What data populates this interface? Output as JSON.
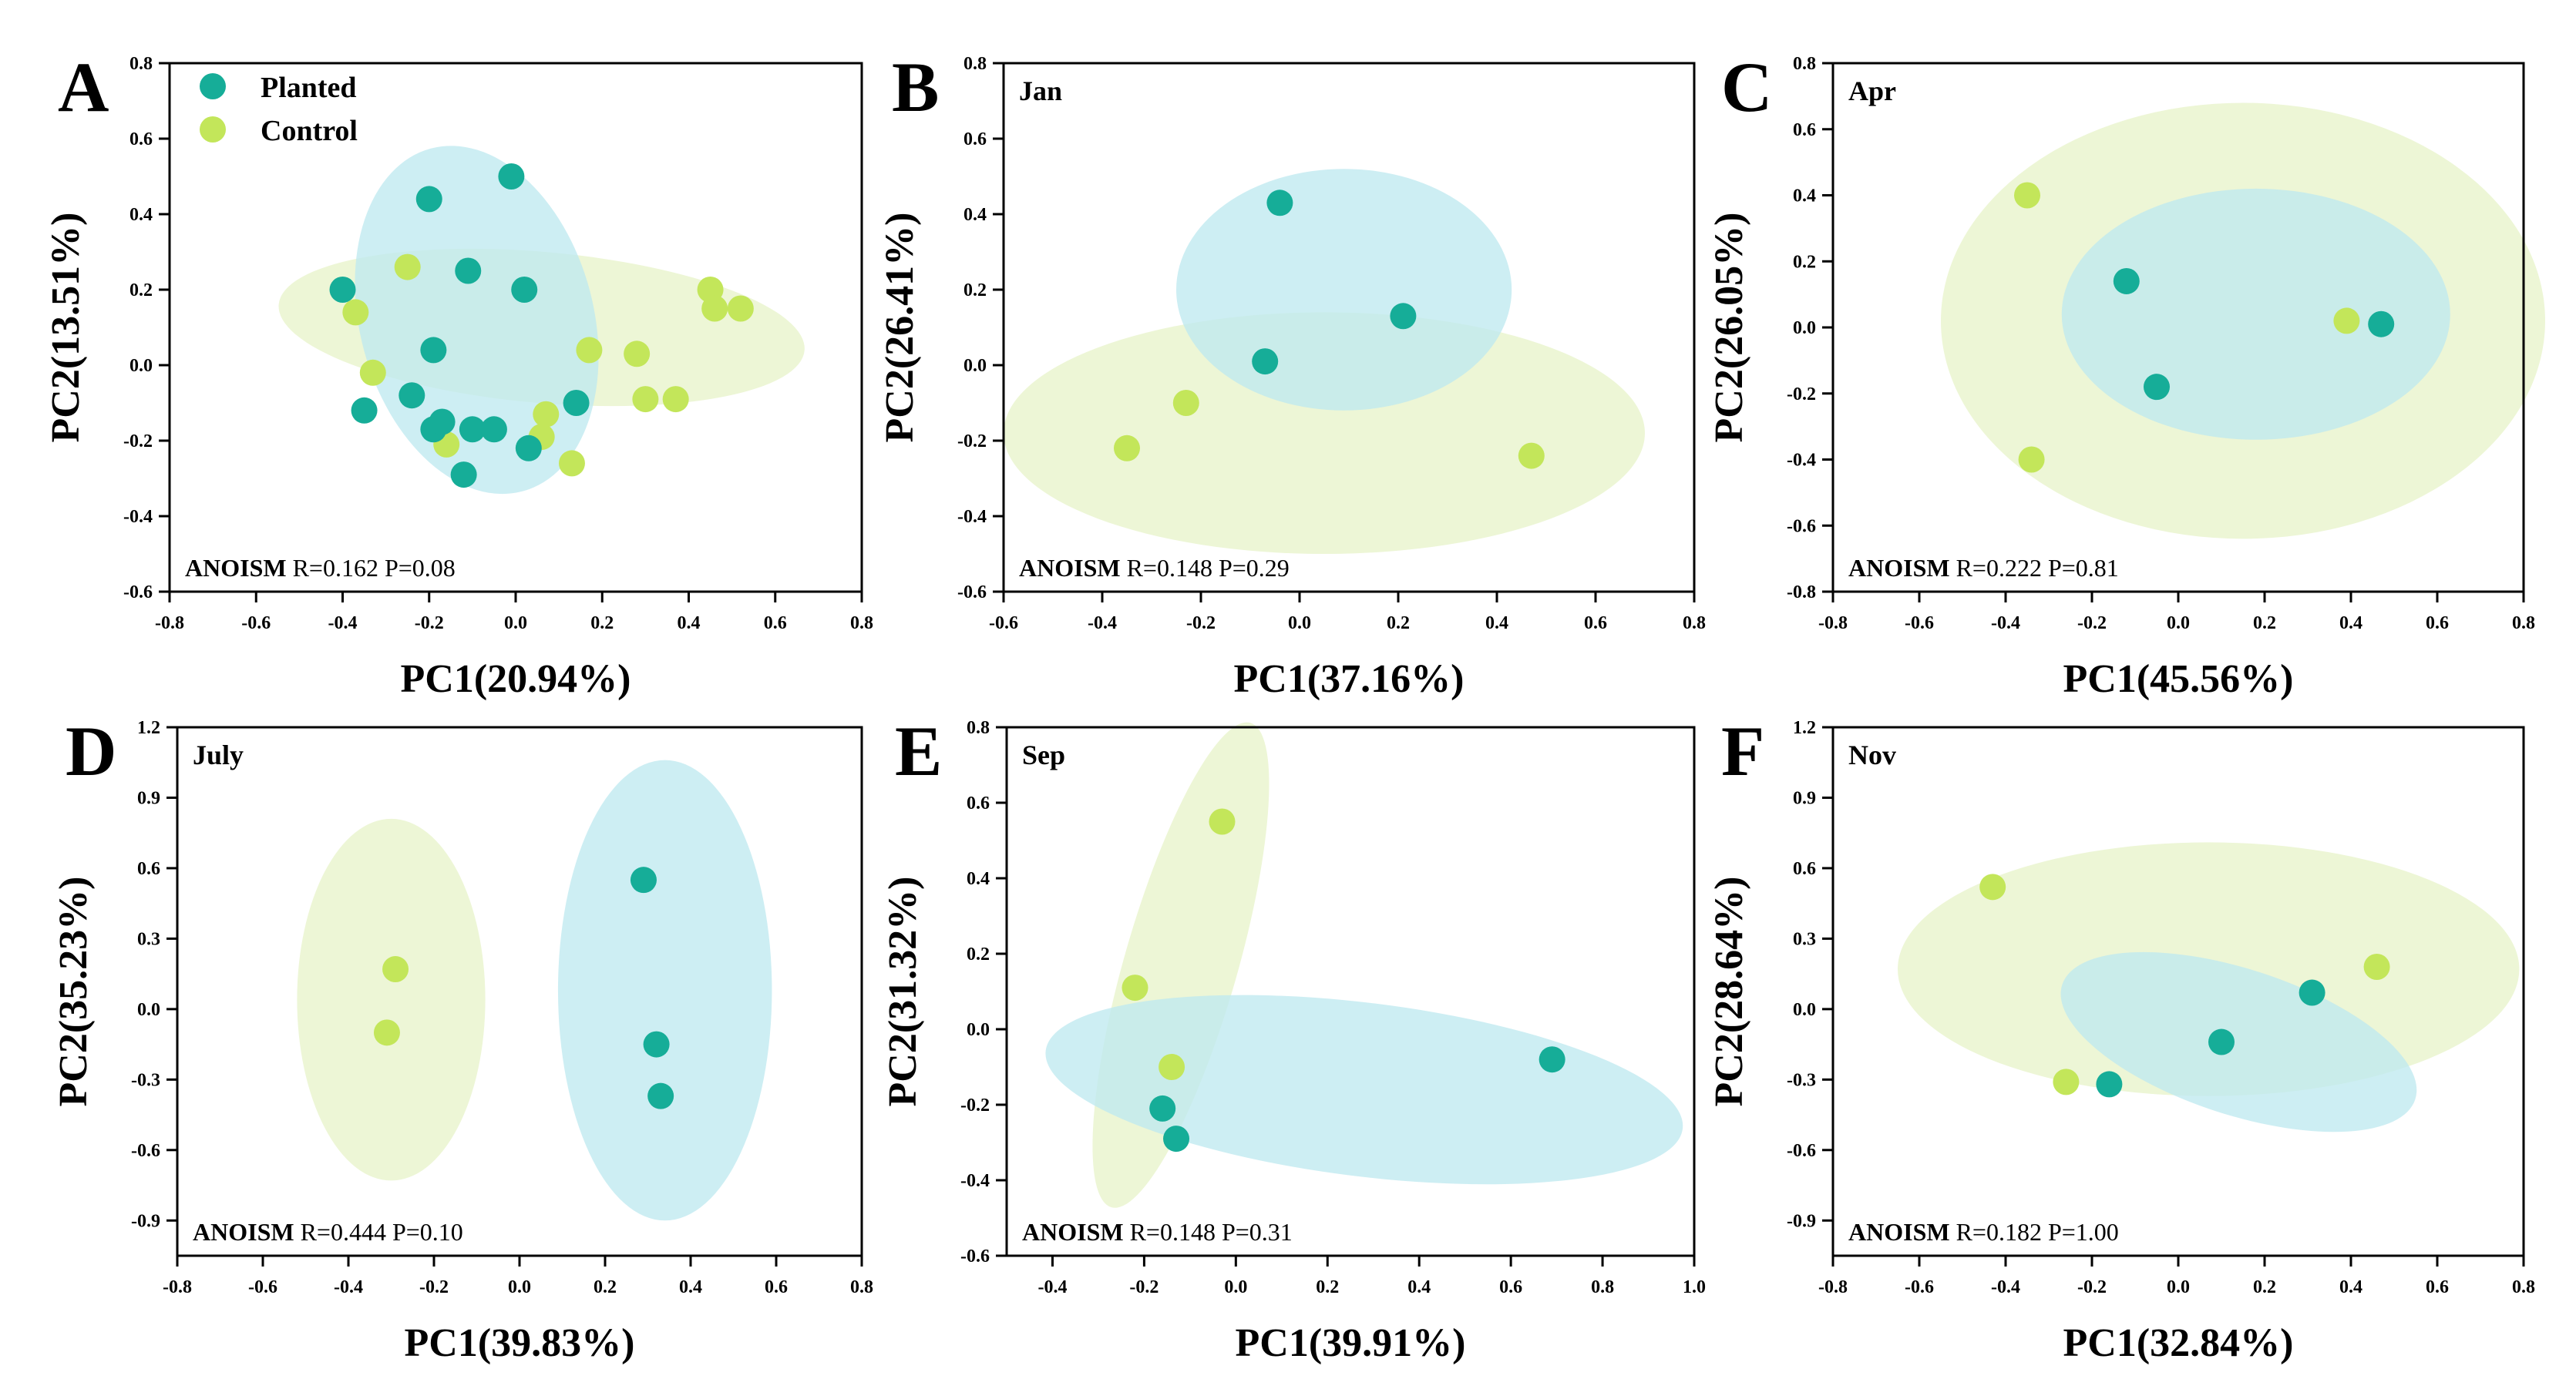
{
  "colors": {
    "planted": "#16ad98",
    "control": "#c3e65a",
    "planted_ellipse": "#bfe9ef",
    "control_ellipse": "#edf6d6",
    "overlap": "#5fcab0"
  },
  "legend": {
    "planted": "Planted",
    "control": "Control"
  },
  "chart_data": [
    {
      "panel": "A",
      "type": "scatter",
      "title": "",
      "xlabel": "PC1(20.94%)",
      "ylabel": "PC2(13.51%)",
      "xlim": [
        -0.8,
        0.8
      ],
      "ylim": [
        -0.6,
        0.8
      ],
      "xticks": [
        "-0.8",
        "-0.6",
        "-0.4",
        "-0.2",
        "0.0",
        "0.2",
        "0.4",
        "0.6",
        "0.8"
      ],
      "yticks": [
        "-0.6",
        "-0.4",
        "-0.2",
        "0.0",
        "0.2",
        "0.4",
        "0.6",
        "0.8"
      ],
      "anosim_label": "ANOISM",
      "anosim_stats": "R=0.162 P=0.08",
      "series": [
        {
          "name": "Control",
          "points": [
            [
              -0.37,
              0.14
            ],
            [
              -0.33,
              -0.02
            ],
            [
              -0.25,
              0.26
            ],
            [
              -0.16,
              -0.21
            ],
            [
              0.06,
              -0.19
            ],
            [
              0.07,
              -0.13
            ],
            [
              0.13,
              -0.26
            ],
            [
              0.17,
              0.04
            ],
            [
              0.28,
              0.03
            ],
            [
              0.3,
              -0.09
            ],
            [
              0.37,
              -0.09
            ],
            [
              0.45,
              0.2
            ],
            [
              0.46,
              0.15
            ],
            [
              0.52,
              0.15
            ]
          ],
          "ellipse": {
            "cx": 0.06,
            "cy": 0.1,
            "rx": 0.61,
            "ry": 0.2,
            "rotation": -5
          }
        },
        {
          "name": "Planted",
          "points": [
            [
              -0.4,
              0.2
            ],
            [
              -0.35,
              -0.12
            ],
            [
              -0.24,
              -0.08
            ],
            [
              -0.2,
              0.44
            ],
            [
              -0.19,
              0.04
            ],
            [
              -0.19,
              -0.17
            ],
            [
              -0.17,
              -0.15
            ],
            [
              -0.11,
              0.25
            ],
            [
              -0.12,
              -0.29
            ],
            [
              -0.1,
              -0.17
            ],
            [
              -0.05,
              -0.17
            ],
            [
              -0.01,
              0.5
            ],
            [
              0.02,
              0.2
            ],
            [
              0.03,
              -0.22
            ],
            [
              0.14,
              -0.1
            ]
          ],
          "ellipse": {
            "cx": -0.09,
            "cy": 0.12,
            "rx": 0.27,
            "ry": 0.47,
            "rotation": 15
          }
        }
      ]
    },
    {
      "panel": "B",
      "type": "scatter",
      "title": "Jan",
      "xlabel": "PC1(37.16%)",
      "ylabel": "PC2(26.41%)",
      "xlim": [
        -0.6,
        0.8
      ],
      "ylim": [
        -0.6,
        0.8
      ],
      "xticks": [
        "-0.6",
        "-0.4",
        "-0.2",
        "0.0",
        "0.2",
        "0.4",
        "0.6",
        "0.8"
      ],
      "yticks": [
        "-0.6",
        "-0.4",
        "-0.2",
        "0.0",
        "0.2",
        "0.4",
        "0.6",
        "0.8"
      ],
      "anosim_label": "ANOISM",
      "anosim_stats": "R=0.148 P=0.29",
      "series": [
        {
          "name": "Control",
          "points": [
            [
              -0.35,
              -0.22
            ],
            [
              -0.23,
              -0.1
            ],
            [
              0.47,
              -0.24
            ]
          ],
          "ellipse": {
            "cx": 0.05,
            "cy": -0.18,
            "rx": 0.65,
            "ry": 0.32,
            "rotation": 0
          }
        },
        {
          "name": "Planted",
          "points": [
            [
              -0.04,
              0.43
            ],
            [
              -0.07,
              0.01
            ],
            [
              0.21,
              0.13
            ]
          ],
          "ellipse": {
            "cx": 0.09,
            "cy": 0.2,
            "rx": 0.34,
            "ry": 0.32,
            "rotation": 0
          }
        }
      ]
    },
    {
      "panel": "C",
      "type": "scatter",
      "title": "Apr",
      "xlabel": "PC1(45.56%)",
      "ylabel": "PC2(26.05%)",
      "xlim": [
        -0.8,
        0.8
      ],
      "ylim": [
        -0.8,
        0.8
      ],
      "xticks": [
        "-0.8",
        "-0.6",
        "-0.4",
        "-0.2",
        "0.0",
        "0.2",
        "0.4",
        "0.6",
        "0.8"
      ],
      "yticks": [
        "-0.8",
        "-0.6",
        "-0.4",
        "-0.2",
        "0.0",
        "0.2",
        "0.4",
        "0.6",
        "0.8"
      ],
      "anosim_label": "ANOISM",
      "anosim_stats": "R=0.222 P=0.81",
      "series": [
        {
          "name": "Control",
          "points": [
            [
              -0.35,
              0.4
            ],
            [
              -0.34,
              -0.4
            ],
            [
              0.39,
              0.02
            ]
          ],
          "ellipse": {
            "cx": 0.15,
            "cy": 0.02,
            "rx": 0.7,
            "ry": 0.66,
            "rotation": 0
          }
        },
        {
          "name": "Planted",
          "points": [
            [
              -0.12,
              0.14
            ],
            [
              -0.05,
              -0.18
            ],
            [
              0.47,
              0.01
            ]
          ],
          "ellipse": {
            "cx": 0.18,
            "cy": 0.04,
            "rx": 0.45,
            "ry": 0.38,
            "rotation": 0
          }
        }
      ]
    },
    {
      "panel": "D",
      "type": "scatter",
      "title": "July",
      "xlabel": "PC1(39.83%)",
      "ylabel": "PC2(35.23%)",
      "xlim": [
        -0.8,
        0.8
      ],
      "ylim": [
        -1.05,
        1.2
      ],
      "xticks": [
        "-0.8",
        "-0.6",
        "-0.4",
        "-0.2",
        "0.0",
        "0.2",
        "0.4",
        "0.6",
        "0.8"
      ],
      "yticks": [
        "-0.9",
        "-0.6",
        "-0.3",
        "0.0",
        "0.3",
        "0.6",
        "0.9",
        "1.2"
      ],
      "anosim_label": "ANOISM",
      "anosim_stats": "R=0.444 P=0.10",
      "series": [
        {
          "name": "Control",
          "points": [
            [
              -0.29,
              0.17
            ],
            [
              -0.31,
              -0.1
            ]
          ],
          "ellipse": {
            "cx": -0.3,
            "cy": 0.04,
            "rx": 0.22,
            "ry": 0.77,
            "rotation": 0
          }
        },
        {
          "name": "Planted",
          "points": [
            [
              0.29,
              0.55
            ],
            [
              0.32,
              -0.15
            ],
            [
              0.33,
              -0.37
            ]
          ],
          "ellipse": {
            "cx": 0.34,
            "cy": 0.08,
            "rx": 0.25,
            "ry": 0.98,
            "rotation": 0
          }
        }
      ]
    },
    {
      "panel": "E",
      "type": "scatter",
      "title": "Sep",
      "xlabel": "PC1(39.91%)",
      "ylabel": "PC2(31.32%)",
      "xlim": [
        -0.5,
        1.0
      ],
      "ylim": [
        -0.6,
        0.8
      ],
      "xticks": [
        "-0.4",
        "-0.2",
        "0.0",
        "0.2",
        "0.4",
        "0.6",
        "0.8",
        "1.0"
      ],
      "yticks": [
        "-0.6",
        "-0.4",
        "-0.2",
        "0.0",
        "0.2",
        "0.4",
        "0.6",
        "0.8"
      ],
      "anosim_label": "ANOISM",
      "anosim_stats": "R=0.148 P=0.31",
      "series": [
        {
          "name": "Control",
          "points": [
            [
              -0.03,
              0.55
            ],
            [
              -0.22,
              0.11
            ],
            [
              -0.14,
              -0.1
            ]
          ],
          "ellipse": {
            "cx": -0.12,
            "cy": 0.17,
            "rx": 0.55,
            "ry": 0.15,
            "rotation": 74
          }
        },
        {
          "name": "Planted",
          "points": [
            [
              -0.16,
              -0.21
            ],
            [
              -0.13,
              -0.29
            ],
            [
              0.69,
              -0.08
            ]
          ],
          "ellipse": {
            "cx": 0.28,
            "cy": -0.16,
            "rx": 0.7,
            "ry": 0.23,
            "rotation": -7
          }
        }
      ]
    },
    {
      "panel": "F",
      "type": "scatter",
      "title": "Nov",
      "xlabel": "PC1(32.84%)",
      "ylabel": "PC2(28.64%)",
      "xlim": [
        -0.8,
        0.8
      ],
      "ylim": [
        -1.05,
        1.2
      ],
      "xticks": [
        "-0.8",
        "-0.6",
        "-0.4",
        "-0.2",
        "0.0",
        "0.2",
        "0.4",
        "0.6",
        "0.8"
      ],
      "yticks": [
        "-0.9",
        "-0.6",
        "-0.3",
        "0.0",
        "0.3",
        "0.6",
        "0.9",
        "1.2"
      ],
      "anosim_label": "ANOISM",
      "anosim_stats": "R=0.182 P=1.00",
      "series": [
        {
          "name": "Control",
          "points": [
            [
              -0.43,
              0.52
            ],
            [
              -0.26,
              -0.31
            ],
            [
              0.46,
              0.18
            ]
          ],
          "ellipse": {
            "cx": 0.07,
            "cy": 0.17,
            "rx": 0.72,
            "ry": 0.54,
            "rotation": 0
          }
        },
        {
          "name": "Planted",
          "points": [
            [
              -0.16,
              -0.32
            ],
            [
              0.1,
              -0.14
            ],
            [
              0.31,
              0.07
            ]
          ],
          "ellipse": {
            "cx": 0.14,
            "cy": -0.14,
            "rx": 0.43,
            "ry": 0.31,
            "rotation": -18
          }
        }
      ]
    }
  ]
}
